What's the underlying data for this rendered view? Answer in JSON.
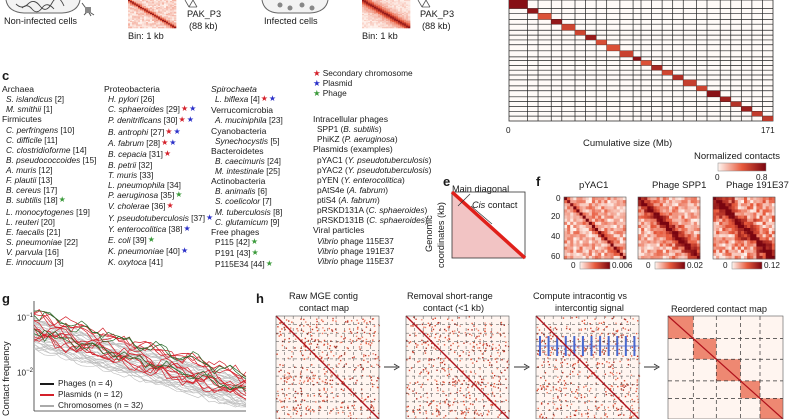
{
  "panelA": {
    "label_noninf": "Non-infected cells",
    "label_inf": "Infected cells",
    "bin1": "Bin: 1 kb",
    "bin2": "Bin: 1 kb",
    "pak1": "PAK_P3",
    "pak1_size": "(88 kb)",
    "pak2": "PAK_P3",
    "pak2_size": "(88 kb)"
  },
  "panelB": {
    "xlabel": "Cumulative size (Mb)",
    "tick0": "0",
    "tick1": "171",
    "cbar_title": "Normalized contacts",
    "cbar_min": "0",
    "cbar_max": "0.8"
  },
  "panelC": {
    "label": "c",
    "legend": [
      {
        "text": "Secondary chromosome",
        "color": "#d4202a"
      },
      {
        "text": "Plasmid",
        "color": "#2a2fc8"
      },
      {
        "text": "Phage",
        "color": "#3a9a3a"
      }
    ],
    "col1": [
      {
        "text": "Archaea",
        "h": true
      },
      {
        "text": "S. islandicus",
        "ref": " [2]",
        "i": true
      },
      {
        "text": "M. smithii",
        "ref": " [1]",
        "i": true
      },
      {
        "text": "Firmicutes",
        "h": true
      },
      {
        "text": "C. perfringens",
        "ref": " [10]",
        "i": true
      },
      {
        "text": "C. difficile",
        "ref": " [11]",
        "i": true
      },
      {
        "text": "C. clostridioforme",
        "ref": " [14]",
        "i": true
      },
      {
        "text": "B. pseudococcoides",
        "ref": " [15]",
        "i": true
      },
      {
        "text": "A. muris",
        "ref": " [12]",
        "i": true
      },
      {
        "text": "F. plautii",
        "ref": " [13]",
        "i": true
      },
      {
        "text": "B. cereus",
        "ref": " [17]",
        "i": true
      },
      {
        "text": "B. subtilis",
        "ref": " [18]",
        "i": true,
        "stars": "g"
      },
      {
        "text": "L. monocytogenes",
        "ref": " [19]",
        "i": true
      },
      {
        "text": "L. reuteri",
        "ref": " [20]",
        "i": true
      },
      {
        "text": "E. faecalis",
        "ref": " [21]",
        "i": true
      },
      {
        "text": "S. pneumoniae",
        "ref": " [22]",
        "i": true
      },
      {
        "text": "V. parvula",
        "ref": " [16]",
        "i": true
      },
      {
        "text": "E. innocuum",
        "ref": " [3]",
        "i": true
      }
    ],
    "col2": [
      {
        "text": "Proteobacteria",
        "h": true
      },
      {
        "text": "H. pylori",
        "ref": " [26]",
        "i": true
      },
      {
        "text": "C. sphaeroides",
        "ref": " [29]",
        "i": true,
        "stars": "rb"
      },
      {
        "text": "P. denitrificans",
        "ref": " [30]",
        "i": true,
        "stars": "rb"
      },
      {
        "text": "B. antrophi",
        "ref": " [27]",
        "i": true,
        "stars": "rb"
      },
      {
        "text": "A. fabrum",
        "ref": " [28]",
        "i": true,
        "stars": "rb"
      },
      {
        "text": "B. cepacia",
        "ref": " [31]",
        "i": true,
        "stars": "r"
      },
      {
        "text": "B. petrii",
        "ref": " [32]",
        "i": true
      },
      {
        "text": "T. muris",
        "ref": " [33]",
        "i": true
      },
      {
        "text": "L. pneumophila",
        "ref": " [34]",
        "i": true
      },
      {
        "text": "P. aeruginosa",
        "ref": " [35]",
        "i": true,
        "stars": "g"
      },
      {
        "text": "V. cholerae",
        "ref": " [36]",
        "i": true,
        "stars": "r"
      },
      {
        "text": "Y. pseudotuberculosis",
        "ref": " [37]",
        "i": true,
        "stars": "b"
      },
      {
        "text": "Y. enterocolitica",
        "ref": " [38]",
        "i": true,
        "stars": "b"
      },
      {
        "text": "E. coli",
        "ref": " [39]",
        "i": true,
        "stars": "g"
      },
      {
        "text": "K. pneumoniae",
        "ref": " [40]",
        "i": true,
        "stars": "b"
      },
      {
        "text": "K. oxytoca",
        "ref": " [41]",
        "i": true
      }
    ],
    "col3": [
      {
        "text": "Spirochaeta",
        "h": true,
        "i": true
      },
      {
        "text": "L. biflexa",
        "ref": " [4]",
        "i": true,
        "stars": "rb"
      },
      {
        "text": "Verrucomicrobia",
        "h": true
      },
      {
        "text": "A. muciniphila",
        "ref": " [23]",
        "i": true
      },
      {
        "text": "Cyanobacteria",
        "h": true
      },
      {
        "text": "Synechocystis",
        "ref": " [5]",
        "i": true
      },
      {
        "text": "Bacteroidetes",
        "h": true
      },
      {
        "text": "B. caecimuris",
        "ref": " [24]",
        "i": true
      },
      {
        "text": "M. intestinale",
        "ref": " [25]",
        "i": true
      },
      {
        "text": "Actinobacteria",
        "h": true
      },
      {
        "text": "B. animalis",
        "ref": " [6]",
        "i": true
      },
      {
        "text": "S. coelicolor",
        "ref": " [7]",
        "i": true
      },
      {
        "text": "M. tuberculosis",
        "ref": " [8]",
        "i": true
      },
      {
        "text": "C. glutamicum",
        "ref": " [9]",
        "i": true
      },
      {
        "text": "Free phages",
        "h": true
      },
      {
        "text": "P115",
        "ref": " [42]",
        "stars": "g"
      },
      {
        "text": "P191",
        "ref": " [43]",
        "stars": "g"
      },
      {
        "text": "P115E34",
        "ref": " [44]",
        "stars": "g"
      }
    ],
    "col4": [
      {
        "text": "Intracellular phages",
        "h": true
      },
      {
        "text": "SPP1 (",
        "i2": "B. subtilis",
        "end": ")"
      },
      {
        "text": "PhiKZ (",
        "i2": "P. aeruginosa",
        "end": ")"
      },
      {
        "text": "Plasmids (examples)",
        "h": true
      },
      {
        "text": "pYAC1 (",
        "i2": "Y. pseudotuberculosis",
        "end": ")"
      },
      {
        "text": "pYAC2 (",
        "i2": "Y. pseudotuberculosis",
        "end": ")"
      },
      {
        "text": "pYEN (",
        "i2": "Y. enterocolitica",
        "end": ")"
      },
      {
        "text": "pAtS4e (",
        "i2": "A. fabrum",
        "end": ")"
      },
      {
        "text": "ptiS4 (",
        "i2": "A. fabrum",
        "end": ")"
      },
      {
        "text": "pRSKD131A (",
        "i2": "C. sphaeroides",
        "end": ")"
      },
      {
        "text": "pRSKD131B (",
        "i2": "C. sphaeroides",
        "end": ")"
      },
      {
        "text": "Viral particles",
        "h": true
      },
      {
        "text": "Vibrio",
        "itail": " phage 115E37"
      },
      {
        "text": "Vibrio",
        "itail": " phage 191E37"
      },
      {
        "text": "Vibrio",
        "itail": " phage 115E37"
      }
    ]
  },
  "panelE": {
    "label": "e",
    "main_diag": "Main diagonal",
    "cis": "Cis",
    "cis_rest": " contact",
    "ylabel1": "Genomic",
    "ylabel2": "coordinates (kb)"
  },
  "panelF": {
    "label": "f",
    "titles": [
      "pYAC1",
      "Phage SPP1",
      "Phage 191E37"
    ],
    "yticks": [
      "0",
      "20",
      "40",
      "60"
    ],
    "cb1": [
      "0",
      "0.006"
    ],
    "cb2": [
      "0",
      "0.02"
    ],
    "cb3": [
      "0",
      "0.12"
    ]
  },
  "panelG": {
    "label": "g",
    "ylabel": "Contact frequency",
    "y_top": "10",
    "y_top_exp": "−1",
    "y_bot": "10",
    "y_bot_exp": "−2",
    "legend": [
      {
        "text": "Phages (n = 4)",
        "color": "#1a1a1a"
      },
      {
        "text": "Plasmids (n = 12)",
        "color": "#d4202a"
      },
      {
        "text": "Chromosomes (n = 32)",
        "color": "#aaaaaa"
      }
    ]
  },
  "panelH": {
    "label": "h",
    "steps": [
      "Raw MGE contig",
      "contact map",
      "Removal short-range",
      "contact (<1 kb)",
      "Compute intracontig vs",
      "intercontig signal",
      "Reordered contact map"
    ]
  }
}
